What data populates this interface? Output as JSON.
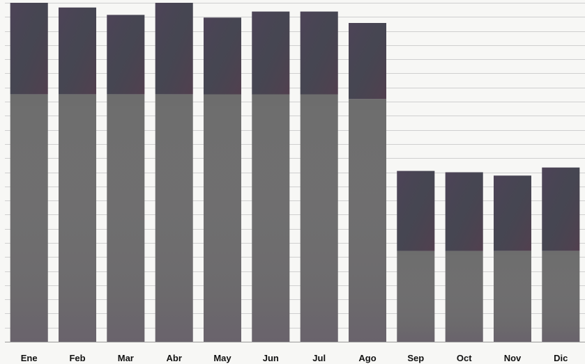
{
  "chart_data": {
    "type": "bar",
    "stacked": true,
    "categories": [
      "Ene",
      "Feb",
      "Mar",
      "Abr",
      "May",
      "Jun",
      "Jul",
      "Ago",
      "Sep",
      "Oct",
      "Nov",
      "Dic"
    ],
    "series": [
      {
        "values": [
          368,
          368,
          368,
          368,
          368,
          368,
          368,
          361,
          135,
          135,
          135,
          135
        ],
        "color": "#6d6d6d"
      },
      {
        "values": [
          136,
          129,
          118,
          136,
          114,
          123,
          123,
          113,
          119,
          117,
          112,
          124
        ],
        "color": "#4a4550"
      }
    ],
    "ylim": [
      0,
      504
    ],
    "grid": true,
    "legend": "none"
  }
}
